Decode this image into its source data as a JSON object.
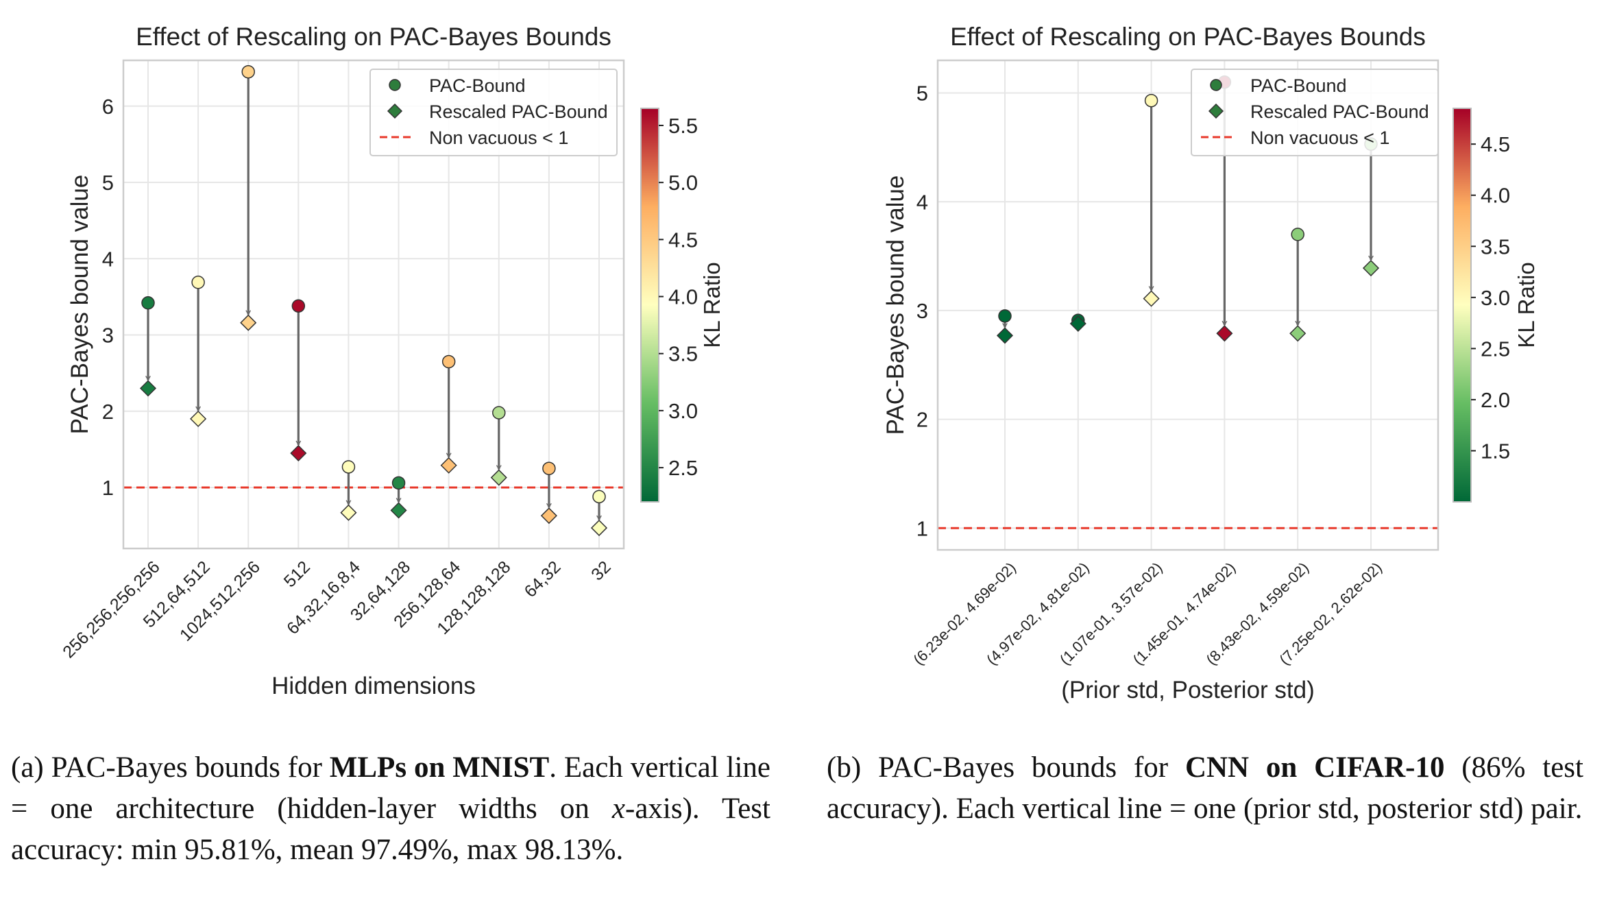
{
  "chart_data": [
    {
      "type": "scatter",
      "title": "Effect of Rescaling on PAC-Bayes Bounds",
      "xlabel": "Hidden dimensions",
      "ylabel": "PAC-Bayes bound value",
      "ylim": [
        0.2,
        6.6
      ],
      "yticks": [
        1,
        2,
        3,
        4,
        5,
        6
      ],
      "grid": true,
      "legend_position": "top-right",
      "legend": [
        "PAC-Bound",
        "Rescaled PAC-Bound",
        "Non vacuous < 1"
      ],
      "categories": [
        "256,256,256,256",
        "512,64,512",
        "1024,512,256",
        "512",
        "64,32,16,8,4",
        "32,64,128",
        "256,128,64",
        "128,128,128",
        "64,32",
        "32"
      ],
      "series": [
        {
          "name": "PAC-Bound",
          "marker": "circle",
          "values": [
            3.42,
            3.69,
            6.45,
            3.38,
            1.27,
            1.06,
            2.65,
            1.98,
            1.25,
            0.88
          ]
        },
        {
          "name": "Rescaled PAC-Bound",
          "marker": "diamond",
          "values": [
            2.3,
            1.9,
            3.16,
            1.45,
            0.67,
            0.7,
            1.29,
            1.13,
            0.63,
            0.47
          ]
        }
      ],
      "kl_ratio": [
        2.4,
        4.0,
        4.4,
        5.6,
        3.95,
        2.5,
        4.6,
        3.5,
        4.6,
        3.9
      ],
      "reference_line": {
        "y": 1,
        "label": "Non vacuous < 1",
        "color": "#e8392b"
      },
      "colorbar": {
        "label": "KL Ratio",
        "min": 2.2,
        "max": 5.65,
        "ticks": [
          "2.5",
          "3.0",
          "3.5",
          "4.0",
          "4.5",
          "5.0",
          "5.5"
        ],
        "tick_values": [
          2.5,
          3.0,
          3.5,
          4.0,
          4.5,
          5.0,
          5.5
        ]
      }
    },
    {
      "type": "scatter",
      "title": "Effect of Rescaling on PAC-Bayes Bounds",
      "xlabel": "(Prior std, Posterior std)",
      "ylabel": "PAC-Bayes bound value",
      "ylim": [
        0.8,
        5.3
      ],
      "yticks": [
        1,
        2,
        3,
        4,
        5
      ],
      "grid": true,
      "legend_position": "top-right",
      "legend": [
        "PAC-Bound",
        "Rescaled PAC-Bound",
        "Non vacuous < 1"
      ],
      "categories": [
        "(6.23e-02, 4.69e-02)",
        "(4.97e-02, 4.81e-02)",
        "(1.07e-01, 3.57e-02)",
        "(1.45e-01, 4.74e-02)",
        "(8.43e-02, 4.59e-02)",
        "(7.25e-02, 2.62e-02)"
      ],
      "series": [
        {
          "name": "PAC-Bound",
          "marker": "circle",
          "values": [
            2.95,
            2.91,
            4.93,
            5.1,
            3.7,
            4.53
          ]
        },
        {
          "name": "Rescaled PAC-Bound",
          "marker": "diamond",
          "values": [
            2.77,
            2.88,
            3.11,
            2.79,
            2.79,
            3.39
          ]
        }
      ],
      "kl_ratio": [
        1.0,
        1.0,
        3.0,
        4.8,
        2.2,
        2.2
      ],
      "reference_line": {
        "y": 1,
        "label": "Non vacuous < 1",
        "color": "#e8392b"
      },
      "colorbar": {
        "label": "KL Ratio",
        "min": 1.0,
        "max": 4.85,
        "ticks": [
          "1.5",
          "2.0",
          "2.5",
          "3.0",
          "3.5",
          "4.0",
          "4.5"
        ],
        "tick_values": [
          1.5,
          2.0,
          2.5,
          3.0,
          3.5,
          4.0,
          4.5
        ]
      }
    }
  ],
  "captions": {
    "a": {
      "prefix": "(a) PAC-Bayes bounds for ",
      "bold": "MLPs on MNIST",
      "mid": ". Each vertical line = one architecture (hidden-layer widths on ",
      "italic": "x",
      "suffix": "-axis). Test accuracy: min 95.81%, mean 97.49%, max 98.13%."
    },
    "b": {
      "prefix": "(b) PAC-Bayes bounds for ",
      "bold": "CNN on CIFAR-10",
      "suffix": " (86% test accuracy). Each vertical line = one (prior std, posterior std) pair."
    }
  }
}
